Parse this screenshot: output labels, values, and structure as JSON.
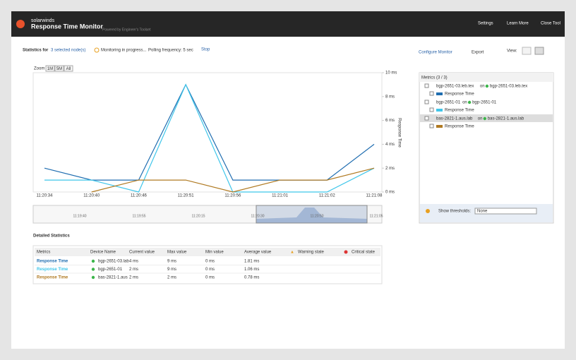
{
  "header": {
    "brand": "solarwinds",
    "title": "Response Time Monitor",
    "subtitle": "Powered by Engineer's Toolset",
    "links": [
      "Settings",
      "Learn More",
      "Close Tool"
    ]
  },
  "toolbar": {
    "stats_label": "Statistics for",
    "nodes_link": "3 selected node(s)",
    "status": "Monitoring in progress...",
    "polling": "Polling frequency: 5 sec",
    "stop": "Stop",
    "configure": "Configure Monitor",
    "export": "Export",
    "view": "View:"
  },
  "zoom": {
    "label": "Zoom",
    "buttons": [
      "1M",
      "5M",
      "All"
    ]
  },
  "chart_data": {
    "type": "line",
    "y_label": "Response Time",
    "categories": [
      "11:20:34",
      "11:20:40",
      "11:20:46",
      "11:20:51",
      "11:20:56",
      "11:21:01",
      "11:21:02",
      "11:21:08"
    ],
    "series": [
      {
        "name": "bgp-2651-03.leb.tex",
        "color": "#1f6db0",
        "values": [
          2,
          1,
          1,
          9,
          1,
          1,
          1,
          4
        ]
      },
      {
        "name": "bgp-2651-01",
        "color": "#3fc6ea",
        "values": [
          1,
          1,
          0,
          9,
          0,
          0,
          0,
          2
        ]
      },
      {
        "name": "bas-2821-1.aus.lab",
        "color": "#b07a22",
        "values": [
          null,
          0,
          1,
          1,
          0,
          1,
          1,
          2
        ]
      }
    ],
    "ylim": [
      0,
      10
    ],
    "yticks": [
      {
        "value": 0,
        "label": "0 ms"
      },
      {
        "value": 2,
        "label": "2 ms"
      },
      {
        "value": 4,
        "label": "4 ms"
      },
      {
        "value": 6,
        "label": "6 ms"
      },
      {
        "value": 8,
        "label": "8 ms"
      },
      {
        "value": 10,
        "label": "10 ms"
      }
    ],
    "grid": false
  },
  "navigator": {
    "labels": [
      "11:19:40",
      "11:19:55",
      "11:20:15",
      "11:20:30",
      "11:20:50",
      "11:21:05"
    ]
  },
  "metrics": {
    "title": "Metrics (3 / 3)",
    "items": [
      {
        "node": "bgp-2651-03.leb.tex",
        "on": "on",
        "host": "bgp-2651-03.leb.tex",
        "metric": "Response Time"
      },
      {
        "node": "bgp-2651-01",
        "on": "on",
        "host": "bgp-2651-01",
        "metric": "Response Time"
      },
      {
        "node": "bas-2821-1.aus.lab",
        "on": "on",
        "host": "bas-2821-1.aus.lab",
        "metric": "Response Time"
      }
    ],
    "thresholds_label": "Show thresholds:",
    "thresholds_value": "None"
  },
  "stats": {
    "title": "Detailed Statistics",
    "headers": [
      "Metrics",
      "Device Name",
      "Current value",
      "Max value",
      "Min value",
      "Average value",
      "Warning state",
      "Critical state"
    ],
    "rows": [
      [
        "Response Time",
        "bgp-2651-03.lab",
        "4 ms",
        "9 ms",
        "0 ms",
        "1.81 ms"
      ],
      [
        "Response Time",
        "bgp-2651-01",
        "2 ms",
        "9 ms",
        "0 ms",
        "1.06 ms"
      ],
      [
        "Response Time",
        "bas-2821-1.aus",
        "2 ms",
        "2 ms",
        "0 ms",
        "0.78 ms"
      ]
    ]
  }
}
